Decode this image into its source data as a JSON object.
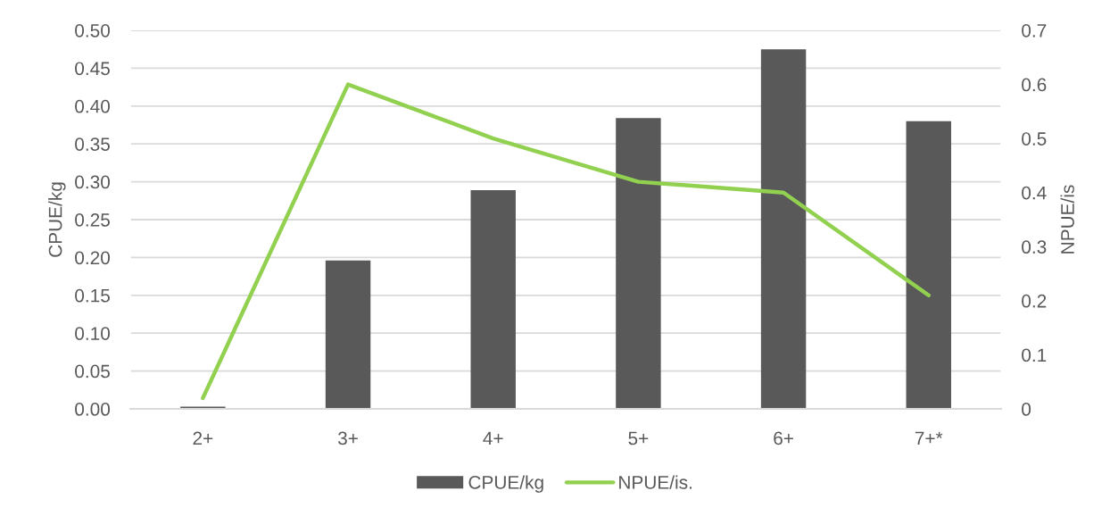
{
  "chart_data": {
    "type": "bar",
    "categories": [
      "2+",
      "3+",
      "4+",
      "5+",
      "6+",
      "7+*"
    ],
    "series": [
      {
        "name": "CPUE/kg",
        "color": "#595959",
        "values": [
          0.003,
          0.196,
          0.289,
          0.384,
          0.475,
          0.38
        ]
      },
      {
        "name": "NPUE/is.",
        "type": "line",
        "axis": "y2",
        "color": "#92d050",
        "values": [
          0.02,
          0.6,
          0.5,
          0.42,
          0.4,
          0.21
        ]
      }
    ],
    "ylabel": "CPUE/kg",
    "y2label": "NPUE/is",
    "ylim": [
      0,
      0.5
    ],
    "yticks": [
      {
        "value": 0,
        "label": "0.00"
      },
      {
        "value": 0.05,
        "label": "0.05"
      },
      {
        "value": 0.1,
        "label": "0.10"
      },
      {
        "value": 0.15,
        "label": "0.15"
      },
      {
        "value": 0.2,
        "label": "0.20"
      },
      {
        "value": 0.25,
        "label": "0.25"
      },
      {
        "value": 0.3,
        "label": "0.30"
      },
      {
        "value": 0.35,
        "label": "0.35"
      },
      {
        "value": 0.4,
        "label": "0.40"
      },
      {
        "value": 0.45,
        "label": "0.45"
      },
      {
        "value": 0.5,
        "label": "0.50"
      }
    ],
    "y2lim": [
      0,
      0.7
    ],
    "y2ticks": [
      0,
      0.1,
      0.2,
      0.3,
      0.4,
      0.5,
      0.6,
      0.7
    ],
    "grid": "y",
    "legend": "bottom",
    "line_style": "solid"
  }
}
